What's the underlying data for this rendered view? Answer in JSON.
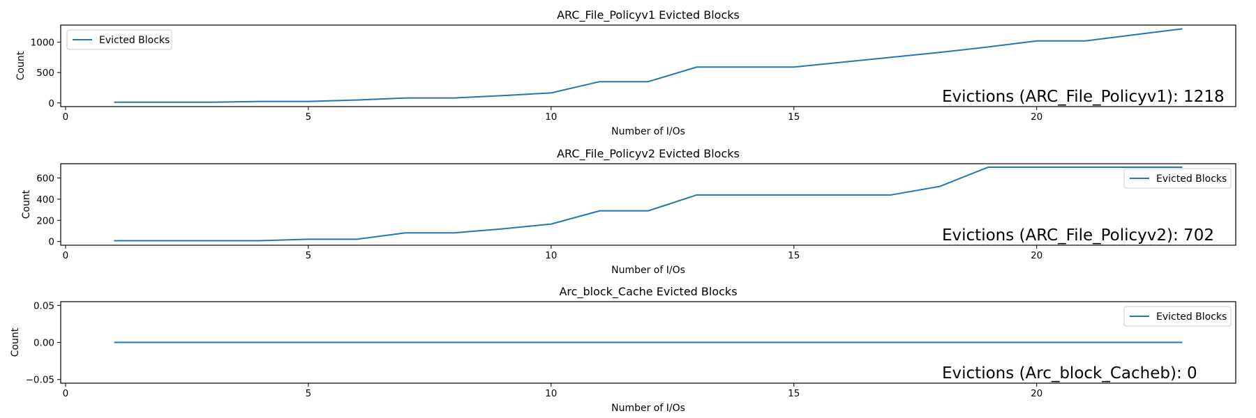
{
  "chart_data": [
    {
      "type": "line",
      "title": "ARC_File_Policyv1 Evicted Blocks",
      "xlabel": "Number of I/Os",
      "ylabel": "Count",
      "xlim": [
        -0.1,
        24.1
      ],
      "ylim": [
        -60,
        1280
      ],
      "xticks": [
        0,
        5,
        10,
        15,
        20
      ],
      "yticks": [
        0,
        500,
        1000
      ],
      "ytick_labels": [
        "0",
        "500",
        "1000"
      ],
      "legend": "upper left",
      "grid": false,
      "series": [
        {
          "name": "Evicted Blocks",
          "color": "#1f77b4",
          "x": [
            1,
            2,
            3,
            4,
            5,
            6,
            7,
            8,
            9,
            10,
            11,
            12,
            13,
            14,
            15,
            16,
            17,
            18,
            19,
            20,
            21,
            22,
            23
          ],
          "y": [
            12,
            12,
            12,
            24,
            24,
            48,
            82,
            82,
            120,
            165,
            350,
            350,
            590,
            590,
            590,
            670,
            750,
            830,
            920,
            1020,
            1020,
            1120,
            1218
          ]
        }
      ],
      "annotation": "Evictions (ARC_File_Policyv1): 1218"
    },
    {
      "type": "line",
      "title": "ARC_File_Policyv2 Evicted Blocks",
      "xlabel": "Number of I/Os",
      "ylabel": "Count",
      "xlim": [
        -0.1,
        24.1
      ],
      "ylim": [
        -35,
        735
      ],
      "xticks": [
        0,
        5,
        10,
        15,
        20
      ],
      "yticks": [
        0,
        200,
        400,
        600
      ],
      "ytick_labels": [
        "0",
        "200",
        "400",
        "600"
      ],
      "legend": "upper right",
      "grid": false,
      "series": [
        {
          "name": "Evicted Blocks",
          "color": "#1f77b4",
          "x": [
            1,
            2,
            3,
            4,
            5,
            6,
            7,
            8,
            9,
            10,
            11,
            12,
            13,
            14,
            15,
            16,
            17,
            18,
            19,
            20,
            21,
            22,
            23
          ],
          "y": [
            8,
            8,
            8,
            8,
            22,
            22,
            82,
            82,
            120,
            165,
            290,
            290,
            440,
            440,
            440,
            440,
            440,
            520,
            702,
            702,
            702,
            702,
            702
          ]
        }
      ],
      "annotation": "Evictions (ARC_File_Policyv2): 702"
    },
    {
      "type": "line",
      "title": "Arc_block_Cache Evicted Blocks",
      "xlabel": "Number of I/Os",
      "ylabel": "Count",
      "xlim": [
        -0.1,
        24.1
      ],
      "ylim": [
        -0.055,
        0.055
      ],
      "xticks": [
        0,
        5,
        10,
        15,
        20
      ],
      "yticks": [
        -0.05,
        0,
        0.05
      ],
      "ytick_labels": [
        "−0.05",
        "0.00",
        "0.05"
      ],
      "legend": "upper right",
      "grid": false,
      "series": [
        {
          "name": "Evicted Blocks",
          "color": "#1f77b4",
          "x": [
            1,
            2,
            3,
            4,
            5,
            6,
            7,
            8,
            9,
            10,
            11,
            12,
            13,
            14,
            15,
            16,
            17,
            18,
            19,
            20,
            21,
            22,
            23
          ],
          "y": [
            0,
            0,
            0,
            0,
            0,
            0,
            0,
            0,
            0,
            0,
            0,
            0,
            0,
            0,
            0,
            0,
            0,
            0,
            0,
            0,
            0,
            0,
            0
          ]
        }
      ],
      "annotation": "Evictions (Arc_block_Cacheb): 0"
    }
  ]
}
